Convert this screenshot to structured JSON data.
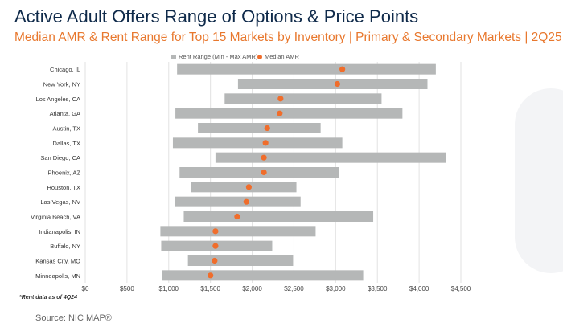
{
  "title": "Active Adult Offers Range of Options & Price Points",
  "subtitle": "Median AMR & Rent Range for Top 15 Markets by Inventory | Primary & Secondary Markets | 2Q25",
  "footnote": "*Rent data as of 4Q24",
  "source": "Source: NIC MAP®",
  "colors": {
    "range": "#b5b7b7",
    "median": "#f06d2b",
    "title": "#0f2a4a",
    "subtitle": "#e8782e"
  },
  "chart_data": {
    "type": "bar",
    "orientation": "horizontal",
    "categories": [
      "Chicago, IL",
      "New York, NY",
      "Los Angeles, CA",
      "Atlanta, GA",
      "Austin, TX",
      "Dallas, TX",
      "San Diego, CA",
      "Phoenix, AZ",
      "Houston, TX",
      "Las Vegas, NV",
      "Virginia Beach, VA",
      "Indianapolis, IN",
      "Buffalo, NY",
      "Kansas City, MO",
      "Minneapolis, MN"
    ],
    "series": [
      {
        "name": "Rent Range (Min - Max AMR)",
        "kind": "range",
        "values": [
          [
            1100,
            4200
          ],
          [
            1830,
            4100
          ],
          [
            1670,
            3550
          ],
          [
            1080,
            3800
          ],
          [
            1350,
            2820
          ],
          [
            1050,
            3080
          ],
          [
            1560,
            4320
          ],
          [
            1130,
            3040
          ],
          [
            1270,
            2530
          ],
          [
            1070,
            2580
          ],
          [
            1180,
            3450
          ],
          [
            900,
            2760
          ],
          [
            910,
            2240
          ],
          [
            1230,
            2490
          ],
          [
            920,
            3330
          ]
        ]
      },
      {
        "name": "Median AMR",
        "kind": "point",
        "values": [
          3080,
          3020,
          2340,
          2330,
          2180,
          2160,
          2140,
          2140,
          1960,
          1930,
          1820,
          1560,
          1560,
          1550,
          1500
        ]
      }
    ],
    "xlim": [
      0,
      4500
    ],
    "xticks": [
      "$0",
      "$500",
      "$1,000",
      "$1,500",
      "$2,000",
      "$2,500",
      "$3,000",
      "$3,500",
      "$4,000",
      "$4,500"
    ],
    "grid": true,
    "legend": "top-center"
  }
}
